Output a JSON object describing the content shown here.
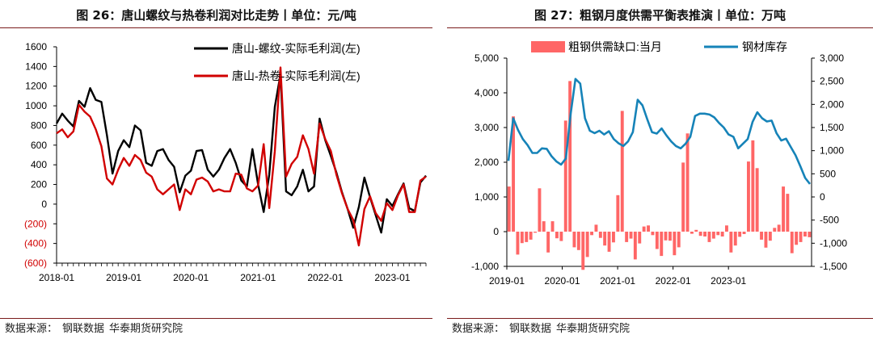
{
  "left_panel": {
    "title": "图 26：唐山螺纹与热卷利润对比走势丨单位：元/吨",
    "source_label": "数据来源：",
    "source_names": [
      "钢联数据",
      "华泰期货研究院"
    ]
  },
  "right_panel": {
    "title": "图 27：粗钢月度供需平衡表推演丨单位：万吨",
    "source_label": "数据来源：",
    "source_names": [
      "钢联数据",
      "华泰期货研究院"
    ]
  },
  "chart_data": [
    {
      "type": "line",
      "x": [
        "2018-01",
        "2018-02",
        "2018-03",
        "2018-04",
        "2018-05",
        "2018-06",
        "2018-07",
        "2018-08",
        "2018-09",
        "2018-10",
        "2018-11",
        "2018-12",
        "2019-01",
        "2019-02",
        "2019-03",
        "2019-04",
        "2019-05",
        "2019-06",
        "2019-07",
        "2019-08",
        "2019-09",
        "2019-10",
        "2019-11",
        "2019-12",
        "2020-01",
        "2020-02",
        "2020-03",
        "2020-04",
        "2020-05",
        "2020-06",
        "2020-07",
        "2020-08",
        "2020-09",
        "2020-10",
        "2020-11",
        "2020-12",
        "2021-01",
        "2021-02",
        "2021-03",
        "2021-04",
        "2021-05",
        "2021-06",
        "2021-07",
        "2021-08",
        "2021-09",
        "2021-10",
        "2021-11",
        "2021-12",
        "2022-01",
        "2022-02",
        "2022-03",
        "2022-04",
        "2022-05",
        "2022-06",
        "2022-07",
        "2022-08",
        "2022-09",
        "2022-10",
        "2022-11",
        "2022-12",
        "2023-01",
        "2023-02",
        "2023-03",
        "2023-04",
        "2023-05",
        "2023-06",
        "2023-07"
      ],
      "x_ticks": [
        "2018-01",
        "2019-01",
        "2020-01",
        "2021-01",
        "2022-01",
        "2023-01"
      ],
      "y_ticks": [
        "1600",
        "1400",
        "1200",
        "1000",
        "800",
        "600",
        "400",
        "200",
        "0",
        "(200)",
        "(400)",
        "(600)"
      ],
      "ylim": [
        -600,
        1600
      ],
      "series": [
        {
          "name": "唐山-螺纹-实际毛利润(左)",
          "color": "#000000",
          "values": [
            820,
            920,
            850,
            790,
            1050,
            990,
            1180,
            1060,
            1040,
            700,
            310,
            540,
            650,
            580,
            800,
            750,
            420,
            390,
            540,
            560,
            450,
            380,
            120,
            290,
            340,
            540,
            550,
            350,
            280,
            350,
            470,
            560,
            420,
            240,
            180,
            560,
            200,
            -80,
            300,
            990,
            1320,
            130,
            90,
            180,
            350,
            130,
            180,
            870,
            650,
            490,
            320,
            120,
            -50,
            -240,
            -30,
            270,
            70,
            -110,
            -290,
            50,
            -20,
            100,
            210,
            -40,
            -70,
            220,
            290
          ]
        },
        {
          "name": "唐山-热卷-实际毛利润(左)",
          "color": "#d10000",
          "values": [
            720,
            760,
            680,
            740,
            1010,
            940,
            890,
            760,
            590,
            260,
            200,
            350,
            470,
            390,
            500,
            450,
            320,
            280,
            150,
            100,
            150,
            200,
            -60,
            150,
            100,
            250,
            270,
            230,
            130,
            150,
            130,
            130,
            310,
            300,
            160,
            130,
            190,
            610,
            -40,
            540,
            1390,
            280,
            410,
            480,
            700,
            560,
            310,
            820,
            660,
            540,
            300,
            110,
            -50,
            -160,
            -420,
            -50,
            80,
            -90,
            -170,
            10,
            -60,
            90,
            200,
            -80,
            -80,
            240,
            280
          ]
        }
      ]
    },
    {
      "type": "bar",
      "x_ticks": [
        "2019-01",
        "2020-01",
        "2021-01",
        "2022-01",
        "2023-01"
      ],
      "y_left_ticks": [
        "5,000",
        "4,000",
        "3,000",
        "2,000",
        "1,000",
        "0",
        "-1,000"
      ],
      "y_right_ticks": [
        "3,000",
        "2,500",
        "2,000",
        "1,500",
        "1,000",
        "500",
        "0",
        "-500",
        "-1,000",
        "-1,500"
      ],
      "ylim_left": [
        -1000,
        5000
      ],
      "ylim_right": [
        -1500,
        3000
      ],
      "series": [
        {
          "name": "粗钢供需缺口:当月",
          "type": "bar",
          "axis": "left",
          "color": "#ff6666",
          "values": [
            1300,
            3320,
            -660,
            -330,
            -300,
            -230,
            -30,
            1250,
            300,
            -600,
            300,
            -190,
            -270,
            3200,
            4340,
            -450,
            -530,
            -1100,
            -730,
            -100,
            200,
            -180,
            -400,
            -580,
            -310,
            1050,
            3480,
            -300,
            -200,
            -800,
            -340,
            150,
            180,
            -100,
            -500,
            -700,
            -250,
            -260,
            -680,
            -450,
            1990,
            2830,
            -60,
            50,
            -120,
            -140,
            -300,
            -200,
            -100,
            -140,
            180,
            -600,
            -400,
            -150,
            -70,
            2020,
            2630,
            1830,
            -230,
            -460,
            -260,
            110,
            200,
            1300,
            1090,
            -620,
            -380,
            -300,
            -140,
            -160
          ]
        },
        {
          "name": "钢材库存",
          "type": "line",
          "axis": "right",
          "color": "#1683b8",
          "values": [
            780,
            1700,
            1450,
            1250,
            1120,
            950,
            950,
            1050,
            1040,
            880,
            770,
            700,
            830,
            1800,
            2550,
            2450,
            1700,
            1430,
            1380,
            1430,
            1350,
            1420,
            1250,
            1160,
            1100,
            1200,
            1400,
            2100,
            1980,
            1680,
            1400,
            1370,
            1480,
            1330,
            1200,
            1100,
            1050,
            1150,
            1300,
            1750,
            1800,
            1800,
            1780,
            1720,
            1600,
            1500,
            1350,
            1300,
            1050,
            1150,
            1250,
            1620,
            1830,
            1700,
            1630,
            1650,
            1380,
            1220,
            1260,
            1080,
            900,
            660,
            410,
            280
          ]
        }
      ]
    }
  ]
}
